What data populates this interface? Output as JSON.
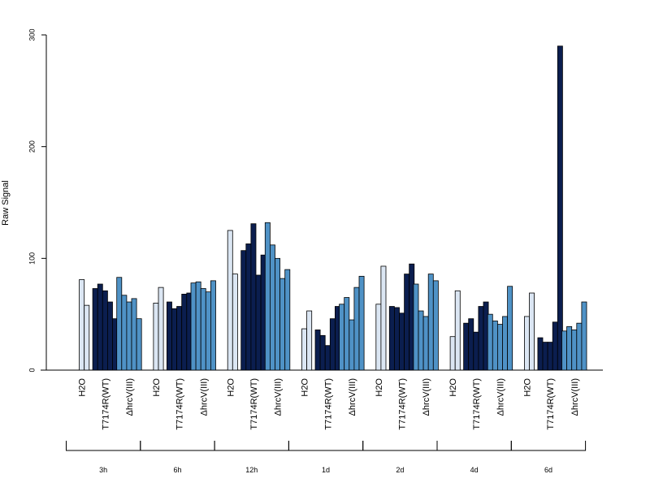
{
  "chart_data": {
    "type": "bar",
    "ylabel": "Raw Signal",
    "xlabel": "",
    "ylim": [
      0,
      300
    ],
    "yticks": [
      "0",
      "100",
      "200",
      "300"
    ],
    "grid": false,
    "legend": "none",
    "condition_labels": [
      "H2O",
      "T7174R(WT)",
      "ΔhrcV(III)"
    ],
    "condition_colors": [
      "#dbe6f3",
      "#0b1e4f",
      "#4f92c6"
    ],
    "groups": [
      {
        "time": "3h",
        "series": [
          {
            "condition": "H2O",
            "values": [
              0,
              81,
              58
            ]
          },
          {
            "condition": "T7174R(WT)",
            "values": [
              73,
              77,
              71,
              61,
              46
            ]
          },
          {
            "condition": "ΔhrcV(III)",
            "values": [
              83,
              67,
              61,
              64,
              46
            ]
          }
        ]
      },
      {
        "time": "6h",
        "series": [
          {
            "condition": "H2O",
            "values": [
              0,
              60,
              74
            ]
          },
          {
            "condition": "T7174R(WT)",
            "values": [
              61,
              55,
              57,
              68,
              69
            ]
          },
          {
            "condition": "ΔhrcV(III)",
            "values": [
              78,
              79,
              73,
              70,
              80
            ]
          }
        ]
      },
      {
        "time": "12h",
        "series": [
          {
            "condition": "H2O",
            "values": [
              0,
              125,
              86
            ]
          },
          {
            "condition": "T7174R(WT)",
            "values": [
              107,
              113,
              131,
              85,
              103
            ]
          },
          {
            "condition": "ΔhrcV(III)",
            "values": [
              132,
              112,
              100,
              82,
              90
            ]
          }
        ]
      },
      {
        "time": "1d",
        "series": [
          {
            "condition": "H2O",
            "values": [
              0,
              37,
              53
            ]
          },
          {
            "condition": "T7174R(WT)",
            "values": [
              36,
              31,
              22,
              46,
              57
            ]
          },
          {
            "condition": "ΔhrcV(III)",
            "values": [
              59,
              65,
              45,
              74,
              84
            ]
          }
        ]
      },
      {
        "time": "2d",
        "series": [
          {
            "condition": "H2O",
            "values": [
              0,
              59,
              93
            ]
          },
          {
            "condition": "T7174R(WT)",
            "values": [
              57,
              56,
              51,
              86,
              95
            ]
          },
          {
            "condition": "ΔhrcV(III)",
            "values": [
              77,
              53,
              48,
              86,
              80
            ]
          }
        ]
      },
      {
        "time": "4d",
        "series": [
          {
            "condition": "H2O",
            "values": [
              0,
              30,
              71
            ]
          },
          {
            "condition": "T7174R(WT)",
            "values": [
              42,
              46,
              34,
              57,
              61
            ]
          },
          {
            "condition": "ΔhrcV(III)",
            "values": [
              50,
              44,
              41,
              48,
              75
            ]
          }
        ]
      },
      {
        "time": "6d",
        "series": [
          {
            "condition": "H2O",
            "values": [
              0,
              48,
              69
            ]
          },
          {
            "condition": "T7174R(WT)",
            "values": [
              29,
              25,
              25,
              43,
              290
            ]
          },
          {
            "condition": "ΔhrcV(III)",
            "values": [
              35,
              39,
              36,
              42,
              61
            ]
          }
        ]
      }
    ]
  }
}
